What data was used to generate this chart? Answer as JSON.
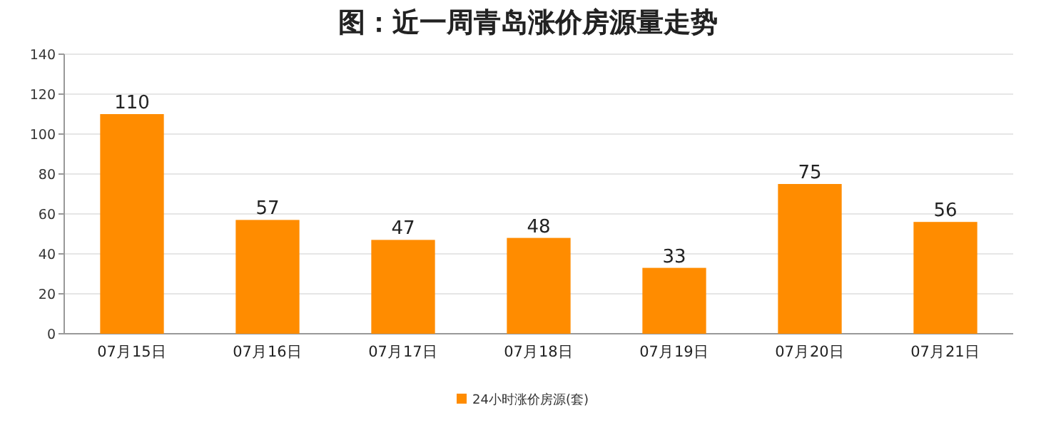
{
  "chart_data": {
    "type": "bar",
    "title": "图：近一周青岛涨价房源量走势",
    "categories": [
      "07月15日",
      "07月16日",
      "07月17日",
      "07月18日",
      "07月19日",
      "07月20日",
      "07月21日"
    ],
    "series": [
      {
        "name": "24小时涨价房源(套)",
        "color": "#ff8c00",
        "values": [
          110,
          57,
          47,
          48,
          33,
          75,
          56
        ]
      }
    ],
    "ylim": [
      0,
      140
    ],
    "yticks": [
      0,
      20,
      40,
      60,
      80,
      100,
      120,
      140
    ],
    "grid": "y",
    "legend": "bottom",
    "data_labels": true
  }
}
